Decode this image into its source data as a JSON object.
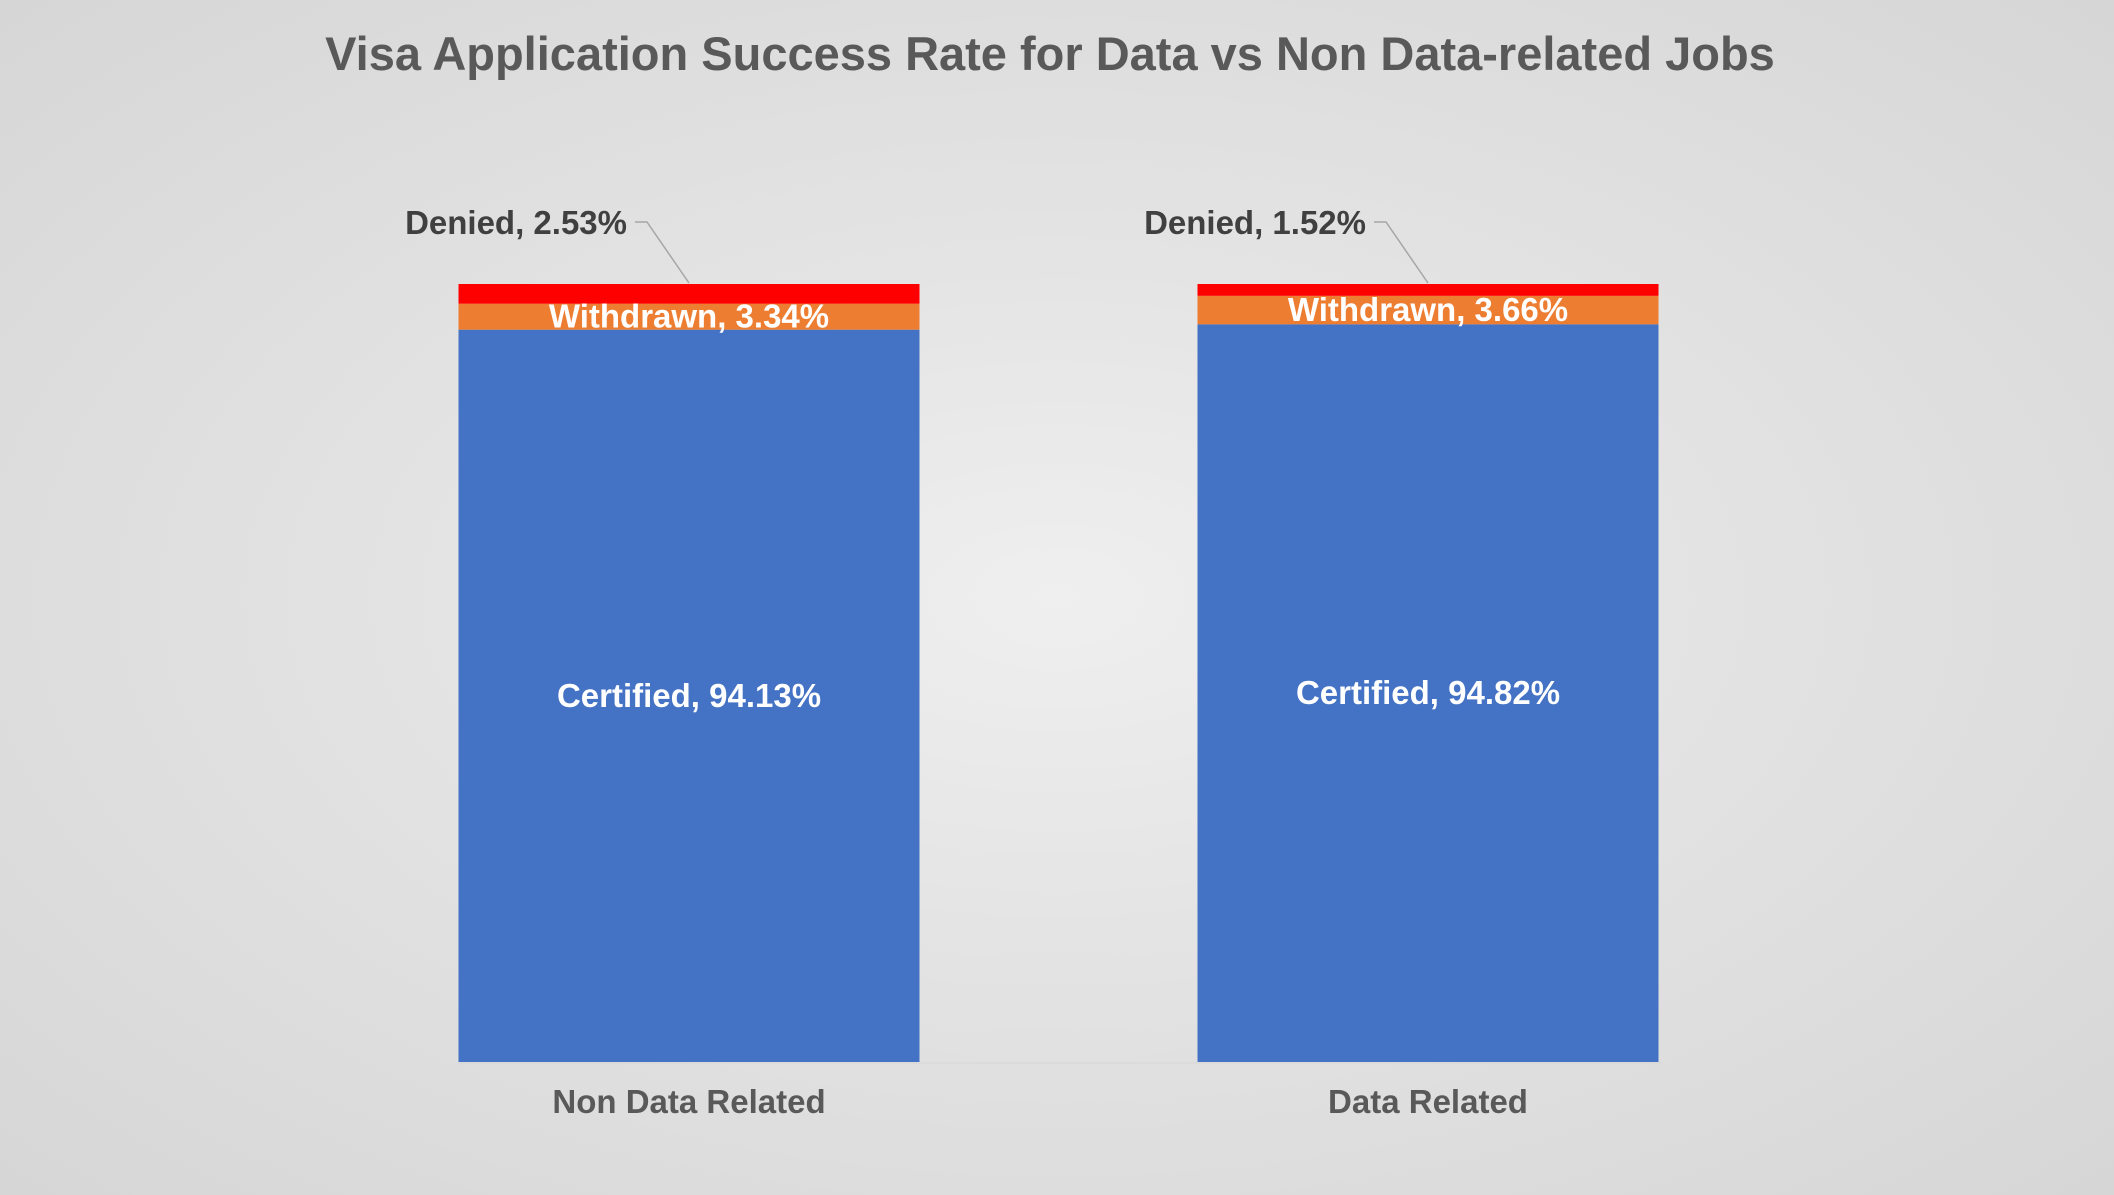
{
  "chart_data": {
    "type": "bar",
    "stacked": true,
    "title": "Visa Application Success Rate for Data vs Non Data-related Jobs",
    "categories": [
      "Non Data Related",
      "Data Related"
    ],
    "ylim": [
      0,
      100
    ],
    "grid": false,
    "legend": "none",
    "series": [
      {
        "name": "Certified",
        "color": "#4472C4",
        "values": [
          94.13,
          94.82
        ],
        "labels": [
          "Certified, 94.13%",
          "Certified, 94.82%"
        ]
      },
      {
        "name": "Withdrawn",
        "color": "#ED7D31",
        "values": [
          3.34,
          3.66
        ],
        "labels": [
          "Withdrawn, 3.34%",
          "Withdrawn, 3.66%"
        ]
      },
      {
        "name": "Denied",
        "color": "#FF0000",
        "values": [
          2.53,
          1.52
        ],
        "labels": [
          "Denied, 2.53%",
          "Denied, 1.52%"
        ]
      }
    ]
  },
  "colors": {
    "axis_line": "#d9d9d9",
    "leader_line": "#a6a6a6"
  }
}
